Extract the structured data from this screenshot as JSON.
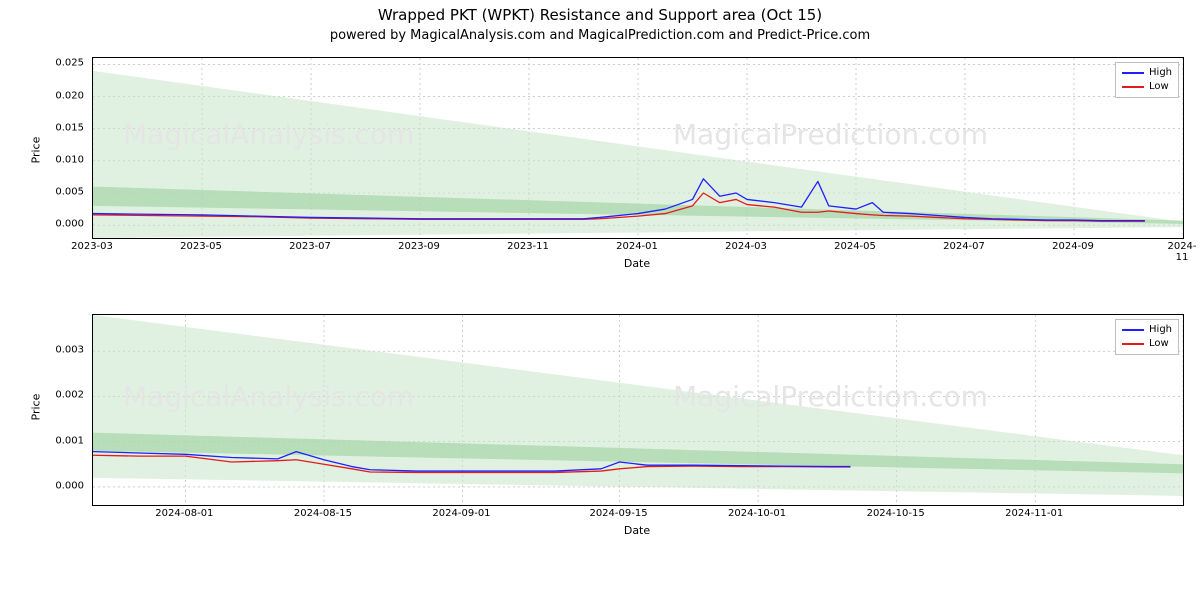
{
  "title": "Wrapped PKT (WPKT) Resistance and Support area (Oct 15)",
  "subtitle": "powered by MagicalAnalysis.com and MagicalPrediction.com and Predict-Price.com",
  "legend": {
    "high": "High",
    "low": "Low"
  },
  "colors": {
    "high_line": "#1f1fff",
    "low_line": "#e41a1c",
    "band_fill": "#c8e6c9",
    "band_dark": "#a5d6a7",
    "grid": "#b0b0b0",
    "border": "#000000",
    "watermark": "#e5e5e5"
  },
  "watermarks": {
    "top_left": "MagicalAnalysis.com",
    "top_right": "MagicalPrediction.com",
    "bottom_left": "MagicalAnalysis.com",
    "bottom_right": "MagicalPrediction.com"
  },
  "panel1": {
    "type": "line",
    "ylabel": "Price",
    "xlabel": "Date",
    "ylim": [
      -0.002,
      0.026
    ],
    "yticks": [
      0.0,
      0.005,
      0.01,
      0.015,
      0.02,
      0.025
    ],
    "ytick_labels": [
      "0.000",
      "0.005",
      "0.010",
      "0.015",
      "0.020",
      "0.025"
    ],
    "xticks": [
      0,
      2,
      4,
      6,
      8,
      10,
      12,
      14,
      16,
      18,
      20
    ],
    "xtick_labels": [
      "2023-03",
      "2023-05",
      "2023-07",
      "2023-09",
      "2023-11",
      "2024-01",
      "2024-03",
      "2024-05",
      "2024-07",
      "2024-09",
      "2024-11"
    ],
    "xlim": [
      0,
      20
    ],
    "band_outer": {
      "x": [
        0,
        20,
        20,
        0
      ],
      "y": [
        0.024,
        0.0005,
        -0.0003,
        -0.002
      ]
    },
    "band_inner": {
      "x": [
        0,
        20,
        20,
        0
      ],
      "y": [
        0.006,
        0.0007,
        0.0002,
        0.003
      ]
    },
    "high": {
      "x": [
        0,
        1,
        2,
        3,
        4,
        5,
        6,
        7,
        8,
        9,
        9.3,
        10,
        10.5,
        11,
        11.2,
        11.5,
        11.8,
        12,
        12.5,
        13,
        13.3,
        13.5,
        14,
        14.3,
        14.5,
        15,
        15.5,
        16,
        16.5,
        17,
        17.5,
        18,
        18.5,
        19,
        19.3
      ],
      "y": [
        0.0018,
        0.0017,
        0.0016,
        0.0014,
        0.0012,
        0.0011,
        0.001,
        0.001,
        0.001,
        0.001,
        0.0012,
        0.0018,
        0.0025,
        0.004,
        0.0072,
        0.0045,
        0.005,
        0.004,
        0.0035,
        0.0028,
        0.0068,
        0.003,
        0.0025,
        0.0035,
        0.002,
        0.0018,
        0.0015,
        0.0012,
        0.001,
        0.0009,
        0.0008,
        0.0008,
        0.0007,
        0.0007,
        0.0007
      ]
    },
    "low": {
      "x": [
        0,
        1,
        2,
        3,
        4,
        5,
        6,
        7,
        8,
        9,
        9.3,
        10,
        10.5,
        11,
        11.2,
        11.5,
        11.8,
        12,
        12.5,
        13,
        13.3,
        13.5,
        14,
        14.3,
        14.5,
        15,
        15.5,
        16,
        16.5,
        17,
        17.5,
        18,
        18.5,
        19,
        19.3
      ],
      "y": [
        0.0016,
        0.0015,
        0.0014,
        0.0013,
        0.0011,
        0.001,
        0.0009,
        0.0009,
        0.0009,
        0.0009,
        0.001,
        0.0014,
        0.0018,
        0.003,
        0.005,
        0.0035,
        0.004,
        0.0032,
        0.0028,
        0.002,
        0.002,
        0.0022,
        0.0018,
        0.0016,
        0.0015,
        0.0014,
        0.0012,
        0.001,
        0.0009,
        0.0008,
        0.0007,
        0.0007,
        0.0006,
        0.0006,
        0.0006
      ]
    }
  },
  "panel2": {
    "type": "line",
    "ylabel": "Price",
    "xlabel": "Date",
    "ylim": [
      -0.0004,
      0.0038
    ],
    "yticks": [
      0.0,
      0.001,
      0.002,
      0.003
    ],
    "ytick_labels": [
      "0.000",
      "0.001",
      "0.002",
      "0.003"
    ],
    "xticks": [
      0,
      15,
      30,
      47,
      62,
      77,
      92,
      108
    ],
    "xtick_labels": [
      "2024-08-01",
      "2024-08-15",
      "2024-09-01",
      "2024-09-15",
      "2024-10-01",
      "2024-10-15",
      "2024-11-01",
      ""
    ],
    "xlim": [
      -10,
      108
    ],
    "band_outer": {
      "x": [
        -10,
        108,
        108,
        -10
      ],
      "y": [
        0.0038,
        0.0007,
        -0.0002,
        0.0002
      ]
    },
    "band_inner": {
      "x": [
        -10,
        108,
        108,
        -10
      ],
      "y": [
        0.0012,
        0.0005,
        0.0003,
        0.0008
      ]
    },
    "high": {
      "x": [
        -10,
        -5,
        0,
        5,
        10,
        12,
        15,
        18,
        20,
        25,
        30,
        35,
        40,
        45,
        47,
        50,
        55,
        60,
        65,
        70,
        72
      ],
      "y": [
        0.00078,
        0.00075,
        0.00072,
        0.00065,
        0.00062,
        0.00078,
        0.0006,
        0.00045,
        0.00038,
        0.00035,
        0.00035,
        0.00035,
        0.00035,
        0.0004,
        0.00055,
        0.00048,
        0.00048,
        0.00047,
        0.00046,
        0.00045,
        0.00045
      ]
    },
    "low": {
      "x": [
        -10,
        -5,
        0,
        5,
        10,
        12,
        15,
        18,
        20,
        25,
        30,
        35,
        40,
        45,
        47,
        50,
        55,
        60,
        65,
        70,
        72
      ],
      "y": [
        0.0007,
        0.00068,
        0.00068,
        0.00055,
        0.00058,
        0.0006,
        0.0005,
        0.0004,
        0.00033,
        0.00032,
        0.00032,
        0.00032,
        0.00032,
        0.00035,
        0.0004,
        0.00045,
        0.00046,
        0.00045,
        0.00045,
        0.00044,
        0.00044
      ]
    }
  }
}
